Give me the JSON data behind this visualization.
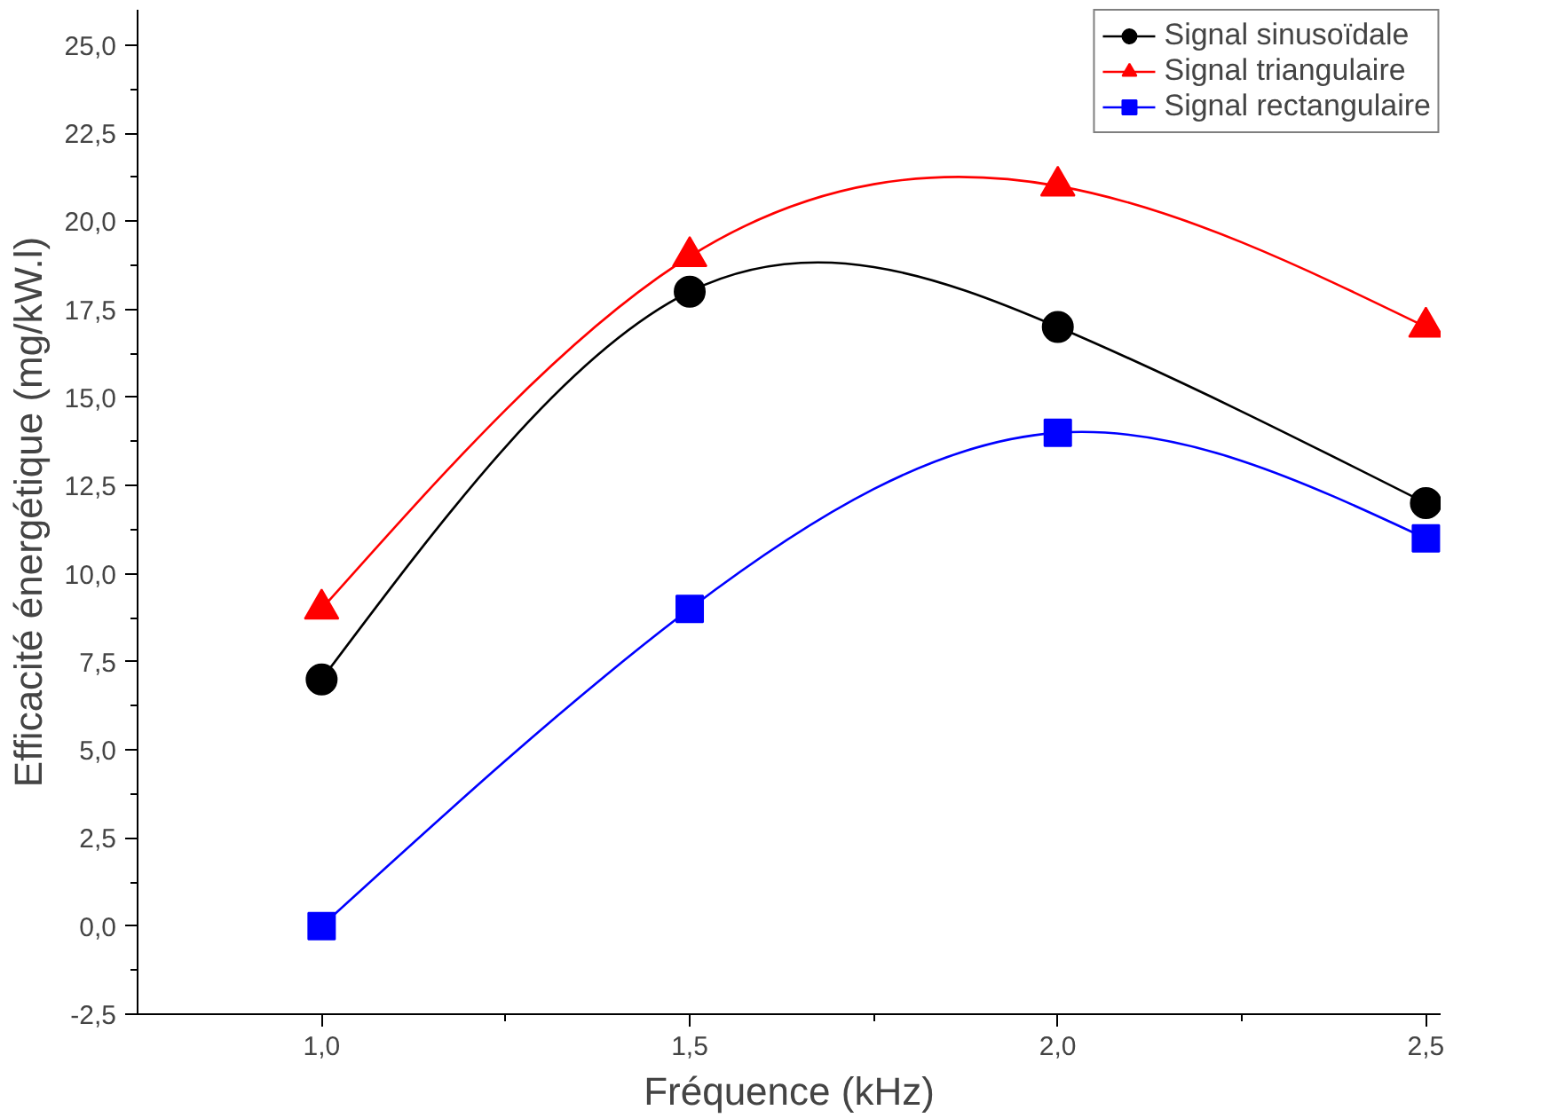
{
  "chart_data": {
    "type": "line",
    "xlabel": "Fréquence (kHz)",
    "ylabel": "Efficacité énergétique (mg/kW.l)",
    "x": [
      1.0,
      1.5,
      2.0,
      2.5
    ],
    "series": [
      {
        "name": "Signal sinusoïdale",
        "color": "#000000",
        "marker": "circle",
        "values": [
          7,
          18,
          17,
          12
        ]
      },
      {
        "name": "Signal triangulaire",
        "color": "#ff0000",
        "marker": "triangle",
        "values": [
          9,
          19,
          21,
          17
        ]
      },
      {
        "name": "Signal rectangulaire",
        "color": "#0000ff",
        "marker": "square",
        "values": [
          0,
          9,
          14,
          11
        ]
      }
    ],
    "xlim": [
      0.75,
      2.52
    ],
    "ylim": [
      -2.5,
      26
    ],
    "xticks": [
      {
        "value": 1.0,
        "label": "1,0"
      },
      {
        "value": 1.5,
        "label": "1,5"
      },
      {
        "value": 2.0,
        "label": "2,0"
      },
      {
        "value": 2.5,
        "label": "2,5"
      }
    ],
    "yticks": [
      {
        "value": -2.5,
        "label": "-2,5"
      },
      {
        "value": 0,
        "label": "0,0"
      },
      {
        "value": 2.5,
        "label": "2,5"
      },
      {
        "value": 5,
        "label": "5,0"
      },
      {
        "value": 7.5,
        "label": "7,5"
      },
      {
        "value": 10,
        "label": "10,0"
      },
      {
        "value": 12.5,
        "label": "12,5"
      },
      {
        "value": 15,
        "label": "15,0"
      },
      {
        "value": 17.5,
        "label": "17,5"
      },
      {
        "value": 20,
        "label": "20,0"
      },
      {
        "value": 22.5,
        "label": "22,5"
      },
      {
        "value": 25,
        "label": "25,0"
      }
    ],
    "grid": false,
    "legend": "top right",
    "line_style": "solid"
  }
}
